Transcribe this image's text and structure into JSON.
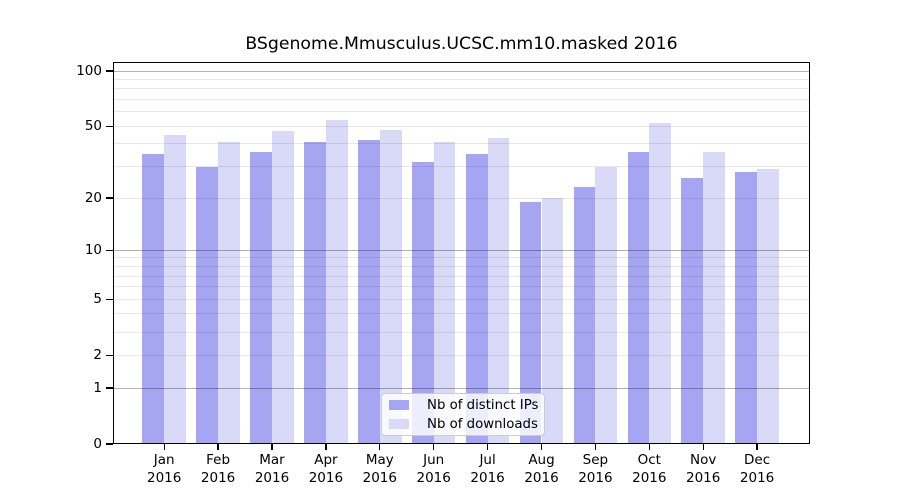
{
  "title": "BSgenome.Mmusculus.UCSC.mm10.masked 2016",
  "chart_data": {
    "type": "bar",
    "title": "BSgenome.Mmusculus.UCSC.mm10.masked 2016",
    "categories": [
      "Jan 2016",
      "Feb 2016",
      "Mar 2016",
      "Apr 2016",
      "May 2016",
      "Jun 2016",
      "Jul 2016",
      "Aug 2016",
      "Sep 2016",
      "Oct 2016",
      "Nov 2016",
      "Dec 2016"
    ],
    "months": [
      "Jan",
      "Feb",
      "Mar",
      "Apr",
      "May",
      "Jun",
      "Jul",
      "Aug",
      "Sep",
      "Oct",
      "Nov",
      "Dec"
    ],
    "year_label": "2016",
    "series": [
      {
        "name": "Nb of distinct IPs",
        "color": "#a5a5f2",
        "values": [
          35,
          30,
          36,
          41,
          42,
          32,
          35,
          19,
          23,
          36,
          26,
          28
        ]
      },
      {
        "name": "Nb of downloads",
        "color": "#d9d9f8",
        "values": [
          45,
          41,
          47,
          54,
          48,
          41,
          43,
          20,
          30,
          52,
          36,
          29
        ]
      }
    ],
    "y_axis": {
      "scale": "log1p",
      "tick_labels": [
        "100",
        "50",
        "20",
        "10",
        "5",
        "2",
        "1",
        "0"
      ],
      "tick_values": [
        100,
        50,
        20,
        10,
        5,
        2,
        1,
        0
      ],
      "ylim": [
        0,
        112
      ],
      "gridlines_major": [
        1,
        10,
        100
      ],
      "gridlines_minor": [
        2,
        3,
        4,
        5,
        6,
        7,
        8,
        9,
        20,
        30,
        40,
        50,
        60,
        70,
        80,
        90
      ]
    },
    "legend": {
      "position": "bottom-center",
      "entries": [
        "Nb of distinct IPs",
        "Nb of downloads"
      ]
    },
    "colors": {
      "axis": "#000000",
      "grid_minor": "rgba(0,0,0,0.09)",
      "grid_major": "rgba(0,0,0,0.30)",
      "background": "#ffffff"
    }
  }
}
